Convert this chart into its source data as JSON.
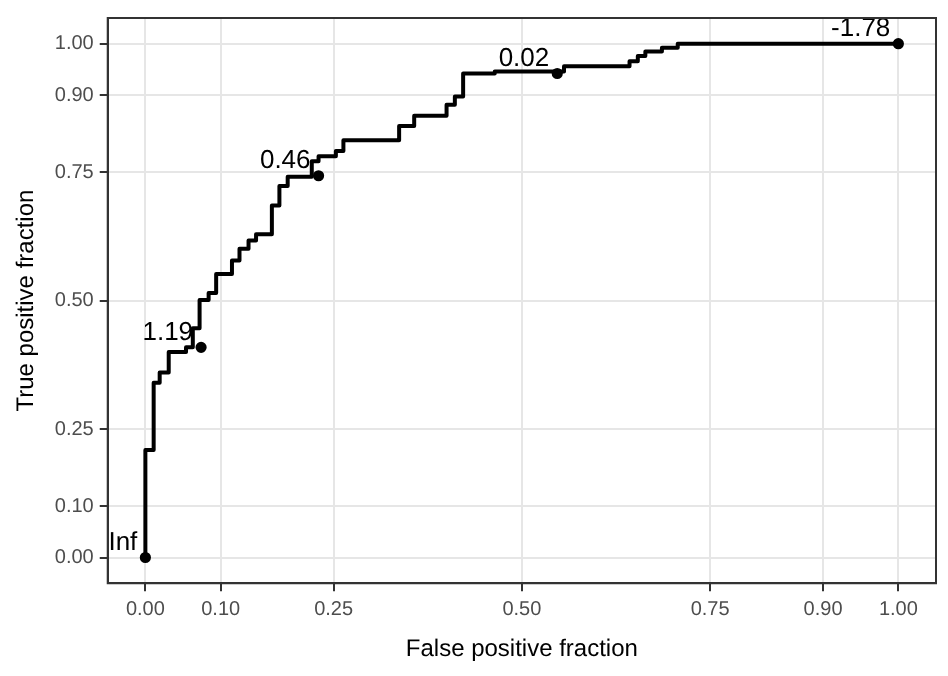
{
  "chart_data": {
    "type": "step",
    "xlabel": "False positive fraction",
    "ylabel": "True positive fraction",
    "xlim": [
      -0.05,
      1.05
    ],
    "ylim": [
      -0.05,
      1.05
    ],
    "xticks": [
      {
        "value": 0,
        "label": "0.00"
      },
      {
        "value": 0.1,
        "label": "0.10"
      },
      {
        "value": 0.25,
        "label": "0.25"
      },
      {
        "value": 0.5,
        "label": "0.50"
      },
      {
        "value": 0.75,
        "label": "0.75"
      },
      {
        "value": 0.9,
        "label": "0.90"
      },
      {
        "value": 1,
        "label": "1.00"
      }
    ],
    "yticks": [
      {
        "value": 0,
        "label": "0.00"
      },
      {
        "value": 0.1,
        "label": "0.10"
      },
      {
        "value": 0.25,
        "label": "0.25"
      },
      {
        "value": 0.5,
        "label": "0.50"
      },
      {
        "value": 0.75,
        "label": "0.75"
      },
      {
        "value": 0.9,
        "label": "0.90"
      },
      {
        "value": 1,
        "label": "1.00"
      }
    ],
    "grid": true,
    "legend": false,
    "series": [
      {
        "type": "step",
        "color": "#000000",
        "marker": "none",
        "x": [
          0,
          0,
          0.011,
          0.019,
          0.031,
          0.054,
          0.063,
          0.072,
          0.084,
          0.094,
          0.115,
          0.125,
          0.137,
          0.147,
          0.168,
          0.178,
          0.189,
          0.221,
          0.23,
          0.253,
          0.263,
          0.337,
          0.357,
          0.4,
          0.411,
          0.422,
          0.464,
          0.556,
          0.643,
          0.654,
          0.664,
          0.686,
          0.707,
          0.739,
          1
        ],
        "values": [
          0,
          0.141,
          0.209,
          0.34,
          0.36,
          0.4,
          0.409,
          0.446,
          0.501,
          0.515,
          0.552,
          0.578,
          0.601,
          0.617,
          0.629,
          0.685,
          0.723,
          0.741,
          0.771,
          0.781,
          0.791,
          0.812,
          0.84,
          0.86,
          0.881,
          0.897,
          0.942,
          0.946,
          0.956,
          0.966,
          0.976,
          0.985,
          0.992,
          1,
          1
        ]
      },
      {
        "type": "scatter",
        "color": "#000000",
        "marker": "circle",
        "x": [
          0,
          0.074,
          0.23,
          0.547,
          1
        ],
        "values": [
          0,
          0.409,
          0.743,
          0.942,
          1
        ]
      }
    ],
    "annotations": [
      {
        "text": "Inf",
        "x": 0,
        "y": 0
      },
      {
        "text": "1.19",
        "x": 0.074,
        "y": 0.409
      },
      {
        "text": "0.46",
        "x": 0.23,
        "y": 0.743
      },
      {
        "text": "0.02",
        "x": 0.547,
        "y": 0.942
      },
      {
        "text": "-1.78",
        "x": 1,
        "y": 1
      }
    ]
  }
}
